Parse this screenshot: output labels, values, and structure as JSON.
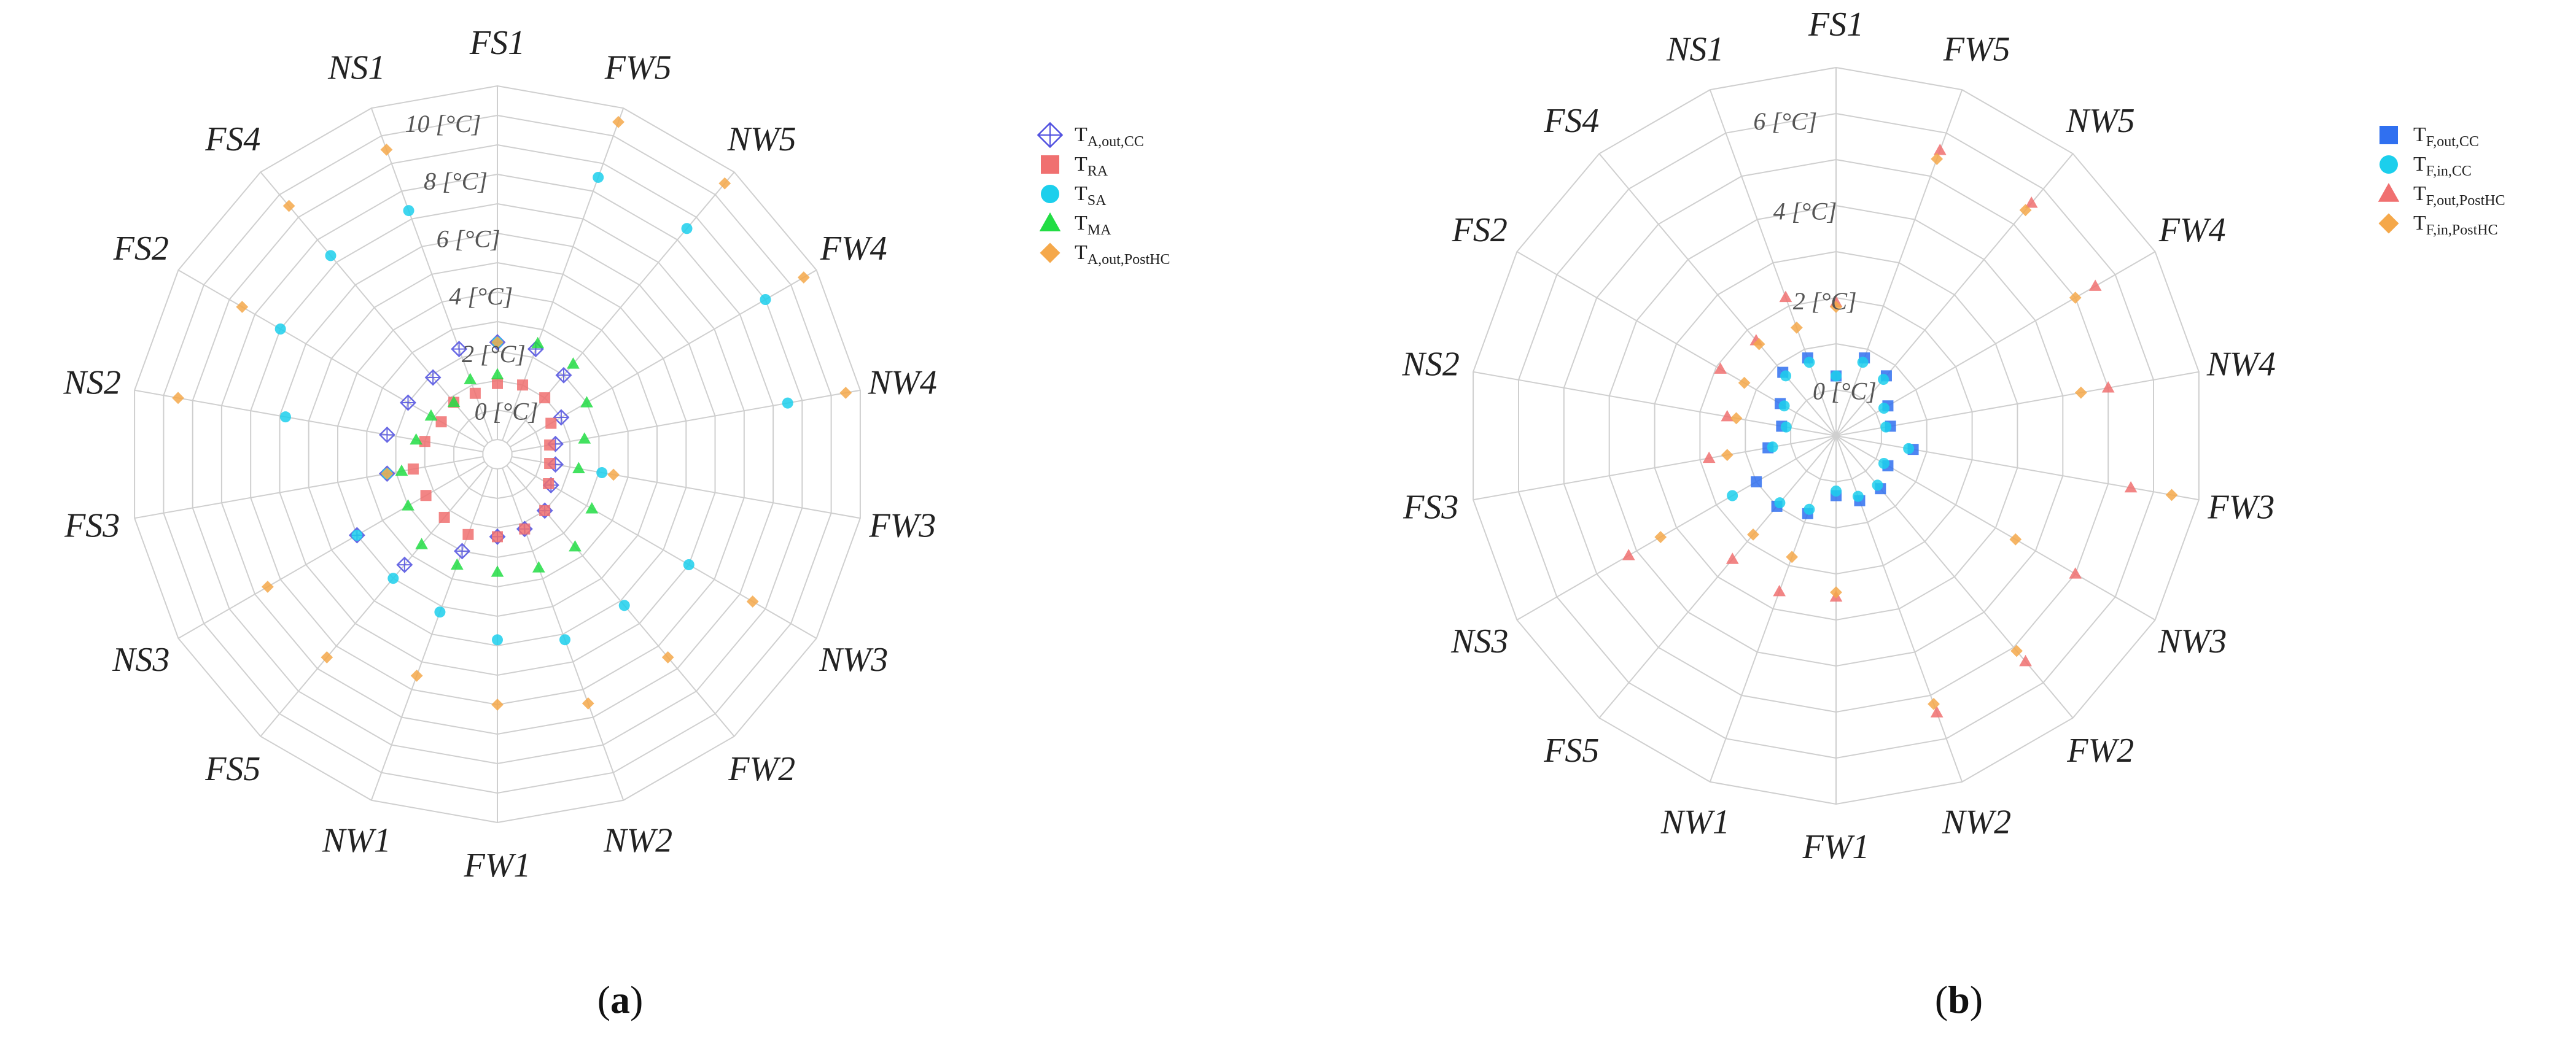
{
  "chart_data": [
    {
      "type": "scatter",
      "polar": true,
      "panel_label": {
        "open": "(",
        "letter": "a",
        "close": ")"
      },
      "categories": [
        "FS1",
        "FW5",
        "NW5",
        "FW4",
        "NW4",
        "FW3",
        "NW3",
        "FW2",
        "NW2",
        "FW1",
        "NW1",
        "FS5",
        "NS3",
        "FS3",
        "NS2",
        "FS2",
        "FS4",
        "NS1"
      ],
      "ring_labels": [
        "0 [°C]",
        "2 [°C]",
        "4 [°C]",
        "6 [°C]",
        "8 [°C]",
        "10 [°C]"
      ],
      "r_range": [
        -1.5,
        11
      ],
      "grid_step": 1,
      "legend_position": "right",
      "series": [
        {
          "label": {
            "main": "T",
            "sub": "A,out,CC"
          },
          "marker": "diamond-cross",
          "color": "#5050e0",
          "values": [
            2.3,
            2.3,
            2.0,
            1.0,
            0.5,
            0.5,
            0.6,
            1.0,
            1.2,
            1.3,
            2.0,
            3.4,
            4.0,
            2.3,
            2.3,
            2.0,
            1.9,
            2.3
          ]
        },
        {
          "label": {
            "main": "T",
            "sub": "RA"
          },
          "marker": "square",
          "color": "#f07070",
          "values": [
            0.9,
            1.0,
            1.0,
            0.6,
            0.3,
            0.3,
            0.5,
            1.0,
            1.2,
            1.3,
            1.4,
            1.3,
            1.3,
            1.4,
            1.0,
            0.7,
            0.8,
            0.7
          ]
        },
        {
          "label": {
            "main": "T",
            "sub": "SA"
          },
          "marker": "circle",
          "color": "#1ccfec",
          "values": [
            2.3,
            8.5,
            8.5,
            9.0,
            8.5,
            2.1,
            6.0,
            5.2,
            5.2,
            4.8,
            4.2,
            4.0,
            4.0,
            2.3,
            5.8,
            7.0,
            7.3,
            7.3
          ]
        },
        {
          "label": {
            "main": "T",
            "sub": "MA"
          },
          "marker": "triangle",
          "color": "#22dd44",
          "values": [
            1.2,
            2.5,
            2.5,
            2.0,
            1.5,
            1.3,
            2.2,
            2.6,
            2.6,
            2.5,
            2.5,
            2.5,
            2.0,
            1.8,
            1.3,
            1.1,
            0.8,
            1.2
          ]
        },
        {
          "label": {
            "main": "T",
            "sub": "A,out,PostHC"
          },
          "marker": "diamond",
          "color": "#f5a84a",
          "values": [
            2.3,
            10.5,
            10.5,
            10.5,
            10.5,
            2.5,
            8.5,
            7.5,
            7.5,
            7.0,
            6.5,
            7.5,
            7.5,
            2.3,
            9.5,
            8.5,
            9.5,
            9.5
          ]
        }
      ]
    },
    {
      "type": "scatter",
      "polar": true,
      "panel_label": {
        "open": "(",
        "letter": "b",
        "close": ")"
      },
      "categories": [
        "FS1",
        "FW5",
        "NW5",
        "FW4",
        "NW4",
        "FW3",
        "NW3",
        "FW2",
        "NW2",
        "FW1",
        "NW1",
        "FS5",
        "NS3",
        "FS3",
        "NS2",
        "FS2",
        "FS4",
        "NS1"
      ],
      "ring_labels": [
        "0 [°C]",
        "2 [°C]",
        "4 [°C]",
        "6 [°C]"
      ],
      "r_range": [
        -1,
        7
      ],
      "grid_step": 1,
      "legend_position": "right",
      "series": [
        {
          "label": {
            "main": "T",
            "sub": "F,out,CC"
          },
          "marker": "square",
          "color": "#3070f0",
          "values": [
            0.3,
            0.8,
            0.7,
            0.3,
            0.2,
            0.7,
            0.3,
            0.5,
            0.5,
            0.3,
            0.8,
            1.0,
            1.0,
            0.5,
            0.2,
            0.4,
            0.8,
            0.8
          ]
        },
        {
          "label": {
            "main": "T",
            "sub": "F,in,CC"
          },
          "marker": "circle",
          "color": "#1ccfec",
          "values": [
            0.3,
            0.7,
            0.6,
            0.2,
            0.1,
            0.6,
            0.2,
            0.4,
            0.4,
            0.2,
            0.7,
            0.9,
            1.6,
            0.4,
            0.1,
            0.3,
            0.7,
            0.7
          ]
        },
        {
          "label": {
            "main": "T",
            "sub": "F,out,PostHC"
          },
          "marker": "triangle",
          "color": "#f07070",
          "values": [
            1.9,
            5.6,
            5.6,
            5.5,
            5.0,
            5.5,
            5.0,
            5.4,
            5.4,
            2.5,
            2.6,
            2.5,
            4.2,
            1.8,
            1.4,
            1.9,
            1.7,
            2.2
          ]
        },
        {
          "label": {
            "main": "T",
            "sub": "F,in,PostHC"
          },
          "marker": "diamond",
          "color": "#f5a84a",
          "values": [
            1.8,
            5.4,
            5.4,
            5.0,
            4.4,
            6.4,
            3.5,
            5.1,
            5.2,
            2.4,
            1.8,
            1.8,
            3.4,
            1.4,
            1.2,
            1.3,
            1.6,
            1.5
          ]
        }
      ]
    }
  ]
}
